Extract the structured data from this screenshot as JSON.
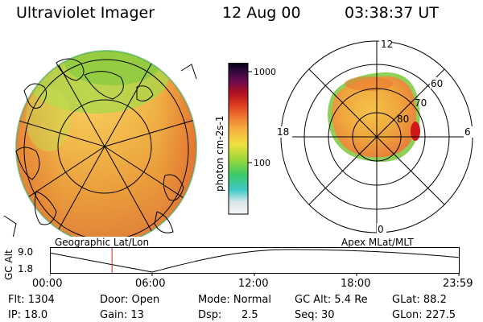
{
  "header": {
    "title": "Ultraviolet Imager",
    "date": "12 Aug 00",
    "time": "03:38:37 UT"
  },
  "geo_panel": {
    "label": "Geographic Lat/Lon"
  },
  "colorbar": {
    "ticks": [
      "1000",
      "100"
    ],
    "unit_label": "photon cm-2s-1"
  },
  "polar_panel": {
    "label": "Apex MLat/MLT",
    "mlt_labels": {
      "top": "12",
      "bottom": "0",
      "left": "18",
      "right": "6"
    },
    "mlat_labels": [
      "60",
      "70",
      "80"
    ]
  },
  "altitude_plot": {
    "ylabel": "GC Alt",
    "yticks": [
      "9.0",
      "1.8"
    ],
    "xticks": [
      "00:00",
      "06:00",
      "12:00",
      "18:00",
      "23:59"
    ],
    "current_time_hours": 3.644,
    "curve_minimum_hours": 6.0,
    "curve_maximum_hours": 14.0
  },
  "status": {
    "flt": "Flt: 1304",
    "ip": "IP: 18.0",
    "door": "Door: Open",
    "gain": "Gain: 13",
    "mode": "Mode: Normal",
    "dsp_label": "Dsp:",
    "dsp_value": "2.5",
    "gc_alt": "GC Alt: 5.4 Re",
    "seq": "Seq: 30",
    "glat": "GLat: 88.2",
    "glon": "GLon: 227.5"
  },
  "colors": {
    "accent_line": "#c0281e",
    "auroral_peak": "#d01818"
  }
}
